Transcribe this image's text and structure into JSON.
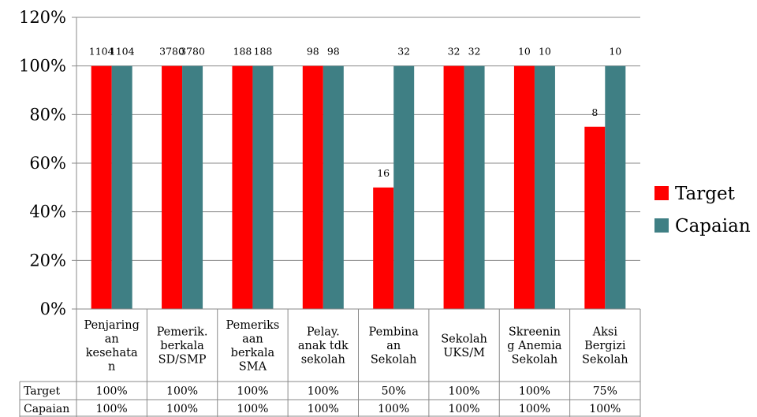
{
  "chart_data": {
    "type": "bar",
    "title": "",
    "xlabel": "",
    "ylabel": "",
    "ylim": [
      0,
      120
    ],
    "y_tick_labels": [
      "0%",
      "20%",
      "40%",
      "60%",
      "80%",
      "100%",
      "120%"
    ],
    "y_tick_values": [
      0,
      20,
      40,
      60,
      80,
      100,
      120
    ],
    "grid": "horizontal",
    "legend_position": "right",
    "categories": [
      [
        "Penjaring",
        "an",
        "kesehata",
        "n"
      ],
      [
        "Pemerik.",
        "berkala",
        "SD/SMP"
      ],
      [
        "Pemeriks",
        "aan",
        "berkala",
        "SMA"
      ],
      [
        "Pelay.",
        "anak tdk",
        "sekolah"
      ],
      [
        "Pembina",
        "an",
        "Sekolah"
      ],
      [
        "Sekolah",
        "UKS/M"
      ],
      [
        "Skreenin",
        "g Anemia",
        "Sekolah"
      ],
      [
        "Aksi",
        "Bergizi",
        "Sekolah"
      ]
    ],
    "series": [
      {
        "name": "Target",
        "color": "#FF0000",
        "values": [
          100,
          100,
          100,
          100,
          50,
          100,
          100,
          75
        ],
        "data_labels": [
          "1104",
          "3780",
          "188",
          "98",
          "16",
          "32",
          "10",
          "8"
        ],
        "table_values": [
          "100%",
          "100%",
          "100%",
          "100%",
          "50%",
          "100%",
          "100%",
          "75%"
        ]
      },
      {
        "name": "Capaian",
        "color": "#3F7F84",
        "values": [
          100,
          100,
          100,
          100,
          100,
          100,
          100,
          100
        ],
        "data_labels": [
          "1104",
          "3780",
          "188",
          "98",
          "32",
          "32",
          "10",
          "10"
        ],
        "table_values": [
          "100%",
          "100%",
          "100%",
          "100%",
          "100%",
          "100%",
          "100%",
          "100%"
        ]
      }
    ]
  }
}
